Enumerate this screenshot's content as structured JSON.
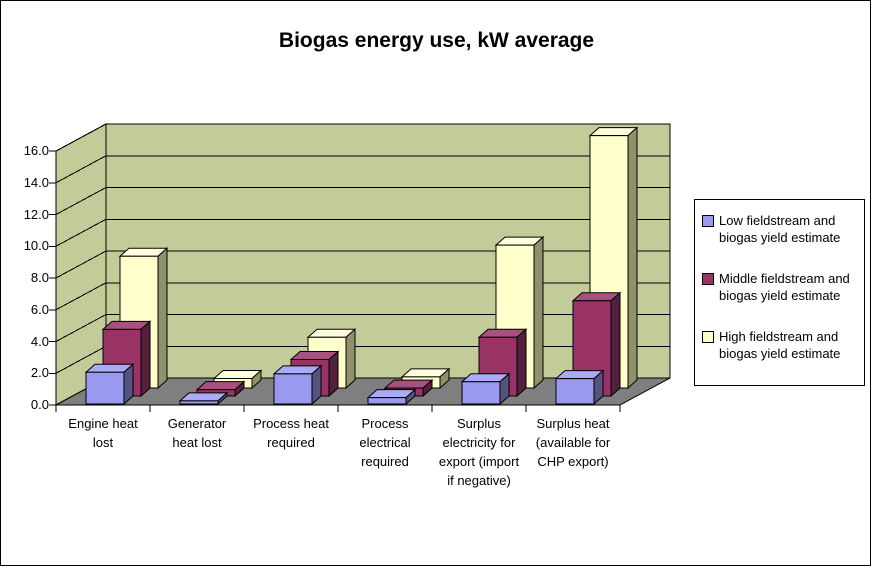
{
  "chart_data": {
    "type": "bar",
    "style": "3d-clustered-column",
    "title": "Biogas energy use, kW average",
    "xlabel": "",
    "ylabel": "",
    "ylim": [
      0,
      16
    ],
    "y_tick_step": 2,
    "y_ticks": [
      "0.0",
      "2.0",
      "4.0",
      "6.0",
      "8.0",
      "10.0",
      "12.0",
      "14.0",
      "16.0"
    ],
    "grid": true,
    "legend_position": "right",
    "categories": [
      "Engine heat lost",
      "Generator heat lost",
      "Process heat required",
      "Process electrical required",
      "Surplus electricity for export (import if negative)",
      "Surplus heat (available for CHP export)"
    ],
    "category_lines": [
      [
        "Engine heat",
        "lost"
      ],
      [
        "Generator",
        "heat lost"
      ],
      [
        "Process heat",
        "required"
      ],
      [
        "Process",
        "electrical",
        "required"
      ],
      [
        "Surplus",
        "electricity for",
        "export (import",
        "if negative)"
      ],
      [
        "Surplus heat",
        "(available for",
        "CHP export)"
      ]
    ],
    "series": [
      {
        "name": "Low fieldstream and biogas yield estimate",
        "lines": [
          "Low fieldstream and",
          "biogas yield estimate"
        ],
        "color": "#9999F0",
        "color_top": "#ABABF5",
        "color_side": "#54547E",
        "values": [
          2.0,
          0.2,
          1.9,
          0.4,
          1.4,
          1.6
        ]
      },
      {
        "name": "Middle fieldstream and biogas yield estimate",
        "lines": [
          "Middle fieldstream and",
          "biogas yield estimate"
        ],
        "color": "#993366",
        "color_top": "#A85080",
        "color_side": "#54203B",
        "values": [
          4.2,
          0.4,
          2.3,
          0.5,
          3.7,
          6.0
        ]
      },
      {
        "name": "High fieldstream and biogas yield estimate",
        "lines": [
          "High fieldstream and",
          "biogas yield estimate"
        ],
        "color": "#FFFFCC",
        "color_top": "#FFFFDE",
        "color_side": "#90906A",
        "values": [
          8.3,
          0.6,
          3.2,
          0.7,
          9.0,
          15.9
        ]
      }
    ],
    "wall_color": "#C3CC99",
    "floor_color": "#7F7F7F",
    "line_color": "#000000",
    "background_color": "#FFFFFF"
  }
}
